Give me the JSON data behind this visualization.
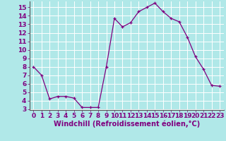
{
  "x": [
    0,
    1,
    2,
    3,
    4,
    5,
    6,
    7,
    8,
    9,
    10,
    11,
    12,
    13,
    14,
    15,
    16,
    17,
    18,
    19,
    20,
    21,
    22,
    23
  ],
  "y": [
    8.0,
    7.0,
    4.2,
    4.5,
    4.5,
    4.3,
    3.2,
    3.2,
    3.2,
    8.0,
    13.7,
    12.7,
    13.2,
    14.5,
    15.0,
    15.5,
    14.5,
    13.7,
    13.3,
    11.5,
    9.2,
    7.7,
    5.8,
    5.7
  ],
  "line_color": "#800080",
  "marker": "+",
  "bg_color": "#b0e8e8",
  "grid_color": "#ffffff",
  "xlabel": "Windchill (Refroidissement éolien,°C)",
  "xlabel_fontsize": 7,
  "tick_fontsize": 6.5,
  "ylim": [
    3,
    15.7
  ],
  "yticks": [
    3,
    4,
    5,
    6,
    7,
    8,
    9,
    10,
    11,
    12,
    13,
    14,
    15
  ],
  "xticks": [
    0,
    1,
    2,
    3,
    4,
    5,
    6,
    7,
    8,
    9,
    10,
    11,
    12,
    13,
    14,
    15,
    16,
    17,
    18,
    19,
    20,
    21,
    22,
    23
  ]
}
